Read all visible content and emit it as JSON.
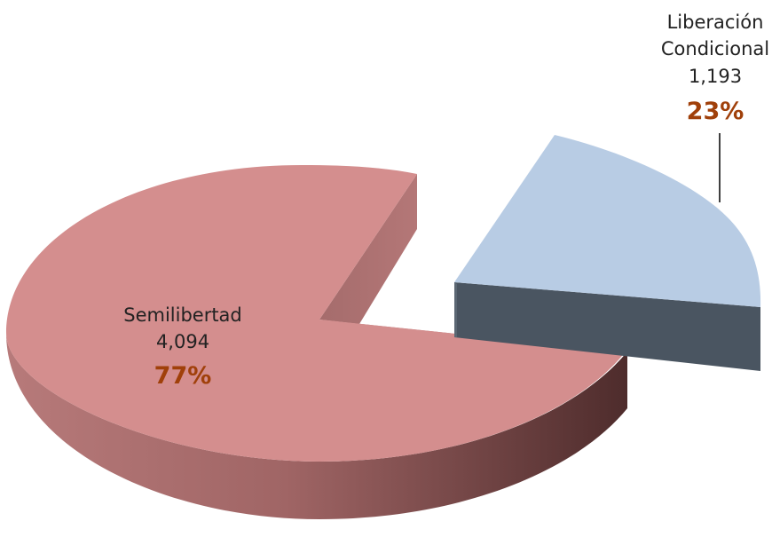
{
  "chart_data": {
    "type": "pie",
    "title": "",
    "slices": [
      {
        "name": "Semilibertad",
        "value": 4094,
        "value_label": "4,094",
        "percent_label": "77%",
        "color": "#D48E8E"
      },
      {
        "name": "Liberación Condicional",
        "name_lines": [
          "Liberación",
          "Condicional"
        ],
        "value": 1193,
        "value_label": "1,193",
        "percent_label": "23%",
        "color": "#B8CCE4"
      }
    ],
    "exploded": "Liberación Condicional",
    "style": "3d",
    "legend": "none"
  },
  "colors": {
    "semilibertad_top": "#D48E8E",
    "semilibertad_side_light": "#C08080",
    "semilibertad_side_dark": "#5A3232",
    "liberacion_top": "#B8CCE4",
    "liberacion_side": "#4A5561",
    "percent_text": "#A0400A"
  }
}
